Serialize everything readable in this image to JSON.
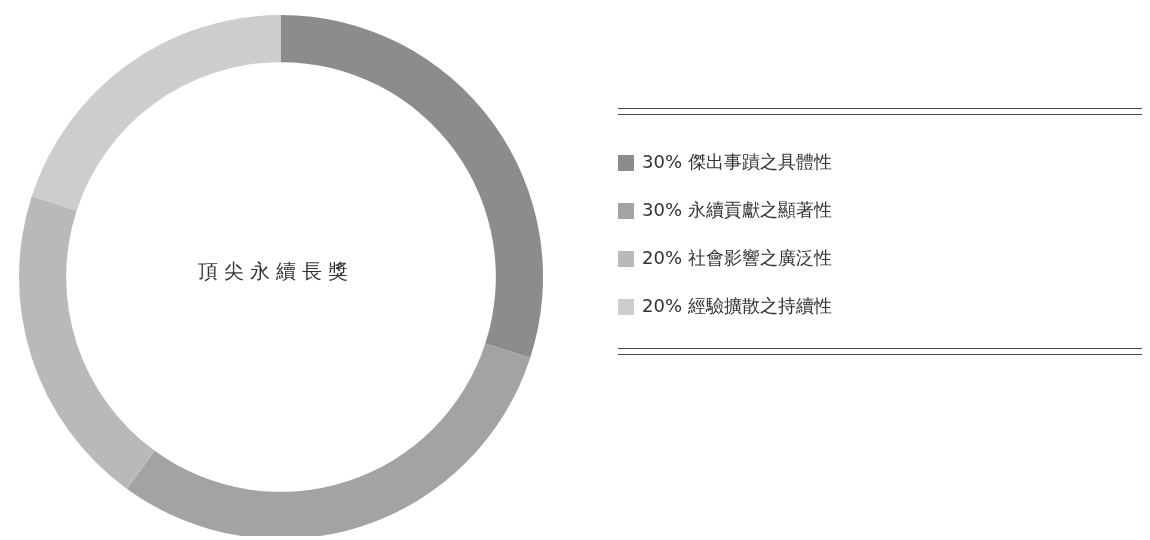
{
  "chart_data": {
    "type": "donut",
    "title": "頂尖永續長獎",
    "categories": [
      "傑出事蹟之具體性",
      "永續貢獻之顯著性",
      "社會影響之廣泛性",
      "經驗擴散之持續性"
    ],
    "values": [
      30,
      30,
      20,
      20
    ],
    "value_labels": [
      "30%",
      "30%",
      "20%",
      "20%"
    ],
    "colors": [
      "#8c8c8c",
      "#a3a3a3",
      "#b9b9b9",
      "#cdcdcd"
    ],
    "legend": "right"
  }
}
